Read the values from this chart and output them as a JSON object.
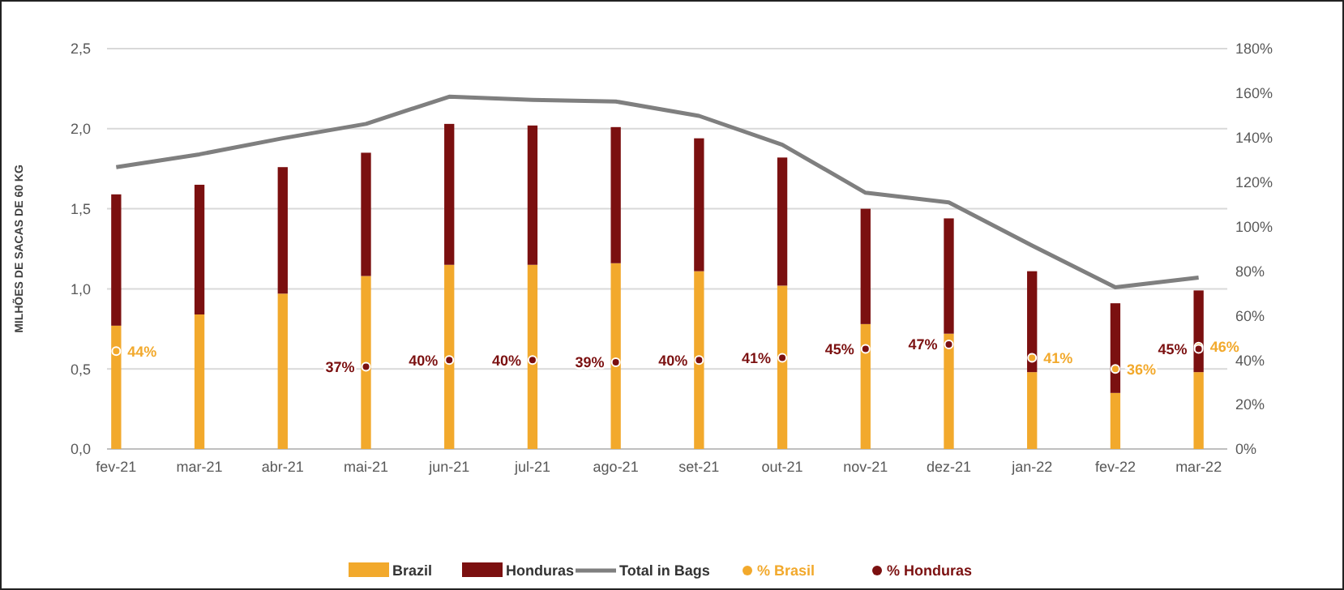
{
  "chart_data": {
    "type": "bar",
    "stacked": true,
    "ylabel": "MILHÕES DE SACAS DE 60 KG",
    "categories": [
      "fev-21",
      "mar-21",
      "abr-21",
      "mai-21",
      "jun-21",
      "jul-21",
      "ago-21",
      "set-21",
      "out-21",
      "nov-21",
      "dez-21",
      "jan-22",
      "fev-22",
      "mar-22"
    ],
    "series": [
      {
        "name": "Brazil",
        "type": "bar",
        "color": "#f2a92c",
        "values": [
          0.77,
          0.84,
          0.97,
          1.08,
          1.15,
          1.15,
          1.16,
          1.11,
          1.02,
          0.78,
          0.72,
          0.48,
          0.35,
          0.48
        ]
      },
      {
        "name": "Honduras",
        "type": "bar",
        "color": "#7b1010",
        "values": [
          0.82,
          0.81,
          0.79,
          0.77,
          0.88,
          0.87,
          0.85,
          0.83,
          0.8,
          0.72,
          0.72,
          0.63,
          0.56,
          0.51
        ]
      },
      {
        "name": "Total in Bags",
        "type": "line",
        "color": "#7f7f7f",
        "marker": "none",
        "values": [
          1.76,
          1.84,
          1.94,
          2.03,
          2.2,
          2.18,
          2.17,
          2.08,
          1.9,
          1.6,
          1.54,
          1.27,
          1.01,
          1.07
        ]
      },
      {
        "name": "% Brasil",
        "type": "scatter",
        "axis": "y2",
        "marker": "circle",
        "color": "#f2a92c",
        "values": [
          44,
          null,
          null,
          null,
          null,
          null,
          null,
          null,
          null,
          null,
          null,
          41,
          36,
          46
        ],
        "value_labels": [
          "44%",
          null,
          null,
          null,
          null,
          null,
          null,
          null,
          null,
          null,
          null,
          "41%",
          "36%",
          "46%"
        ]
      },
      {
        "name": "% Honduras",
        "type": "scatter",
        "axis": "y2",
        "marker": "circle",
        "color": "#7b1010",
        "values": [
          null,
          null,
          null,
          37,
          40,
          40,
          39,
          40,
          41,
          45,
          47,
          null,
          null,
          45
        ],
        "value_labels": [
          null,
          null,
          null,
          "37%",
          "40%",
          "40%",
          "39%",
          "40%",
          "41%",
          "45%",
          "47%",
          null,
          null,
          "45%"
        ]
      }
    ],
    "ylim": [
      0,
      2.5
    ],
    "yticks": [
      {
        "value": 0,
        "label": "0,0"
      },
      {
        "value": 0.5,
        "label": "0,5"
      },
      {
        "value": 1,
        "label": "1,0"
      },
      {
        "value": 1.5,
        "label": "1,5"
      },
      {
        "value": 2,
        "label": "2,0"
      },
      {
        "value": 2.5,
        "label": "2,5"
      }
    ],
    "y2lim": [
      0,
      180
    ],
    "y2ticks": [
      {
        "value": 0,
        "label": "0%"
      },
      {
        "value": 20,
        "label": "20%"
      },
      {
        "value": 40,
        "label": "40%"
      },
      {
        "value": 60,
        "label": "60%"
      },
      {
        "value": 80,
        "label": "80%"
      },
      {
        "value": 100,
        "label": "100%"
      },
      {
        "value": 120,
        "label": "120%"
      },
      {
        "value": 140,
        "label": "140%"
      },
      {
        "value": 160,
        "label": "160%"
      },
      {
        "value": 180,
        "label": "180%"
      }
    ],
    "grid": "y",
    "legend": "bottom"
  }
}
